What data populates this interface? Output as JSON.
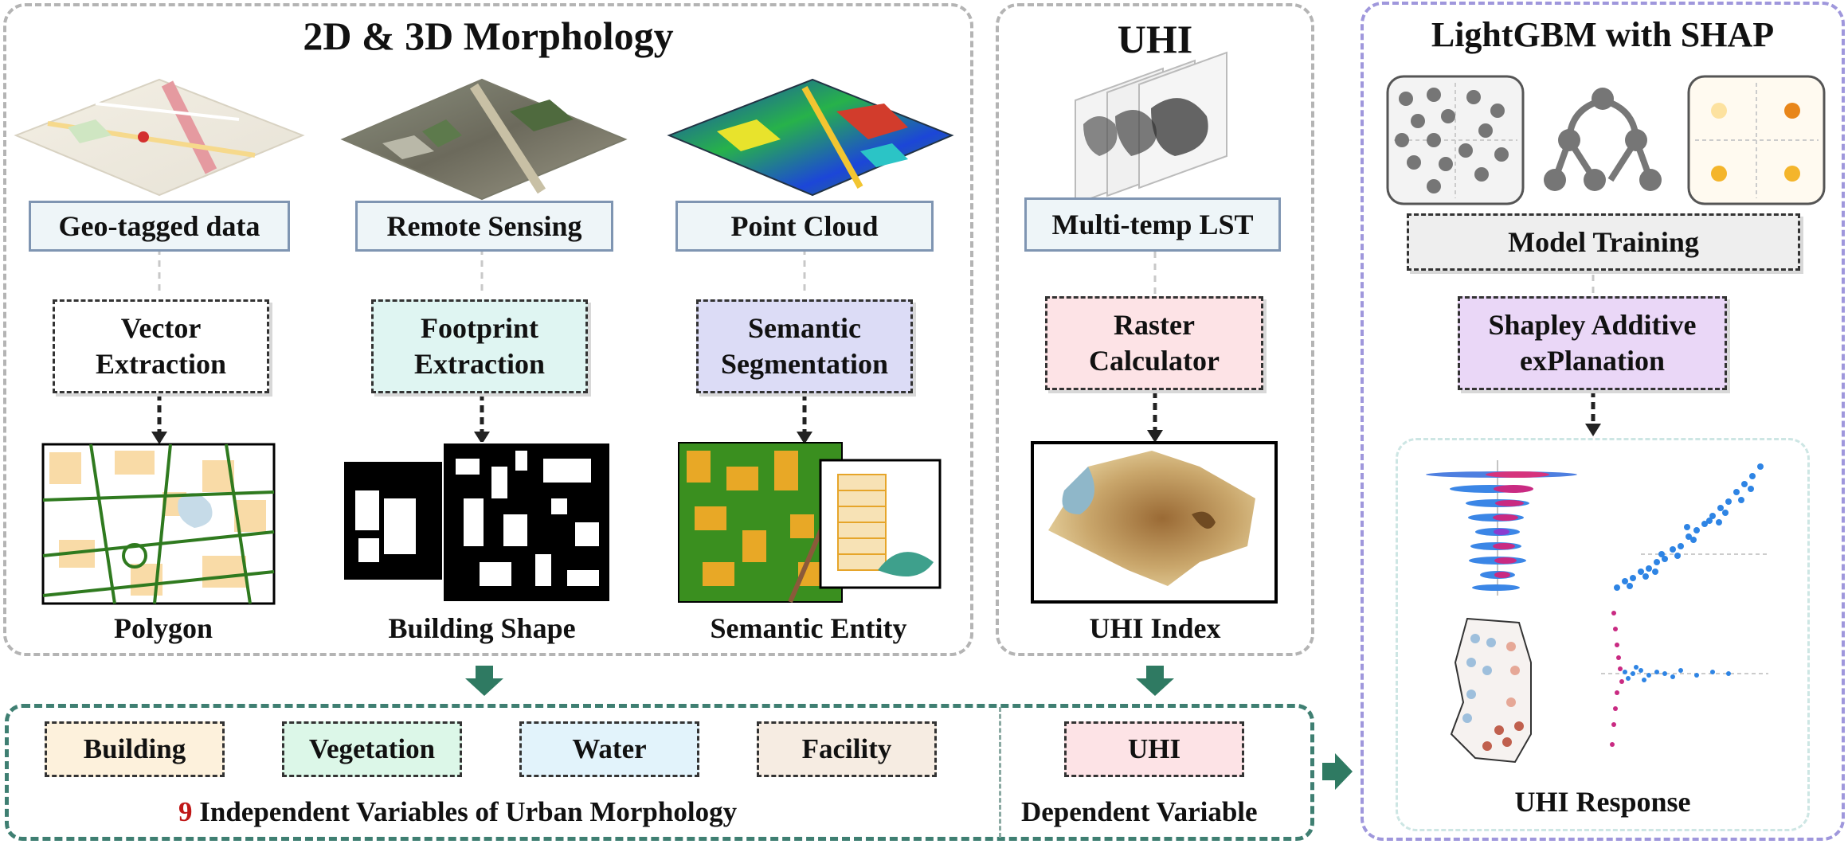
{
  "morphology": {
    "title": "2D & 3D Morphology",
    "sources": [
      "Geo-tagged data",
      "Remote Sensing",
      "Point Cloud"
    ],
    "process_lines": [
      [
        "Vector",
        "Extraction"
      ],
      [
        "Footprint",
        "Extraction"
      ],
      [
        "Semantic",
        "Segmentation"
      ]
    ],
    "outputs": [
      "Polygon",
      "Building Shape",
      "Semantic Entity"
    ]
  },
  "uhi": {
    "title": "UHI",
    "source": "Multi-temp LST",
    "process_lines": [
      "Raster",
      "Calculator"
    ],
    "output": "UHI Index"
  },
  "model": {
    "title": "LightGBM with SHAP",
    "training": "Model Training",
    "shap_lines": [
      "Shapley Additive",
      "exPlanation"
    ],
    "response": "UHI Response"
  },
  "variables": {
    "items": [
      "Building",
      "Vegetation",
      "Water",
      "Facility"
    ],
    "dependent_item": "UHI",
    "count": "9",
    "independent_label": " Independent Variables of Urban Morphology",
    "dependent_label": "Dependent Variable"
  },
  "colors": {
    "building": "#fdf1dc",
    "vegetation": "#dcf7e8",
    "water": "#e2f3fb",
    "facility": "#f6ece2",
    "uhi": "#fde3e6",
    "footprint": "#dff5f2",
    "segmentation": "#dcdcf6",
    "shap": "#ead7f7",
    "arrow": "#2f7a62",
    "count_red": "#c01818"
  }
}
